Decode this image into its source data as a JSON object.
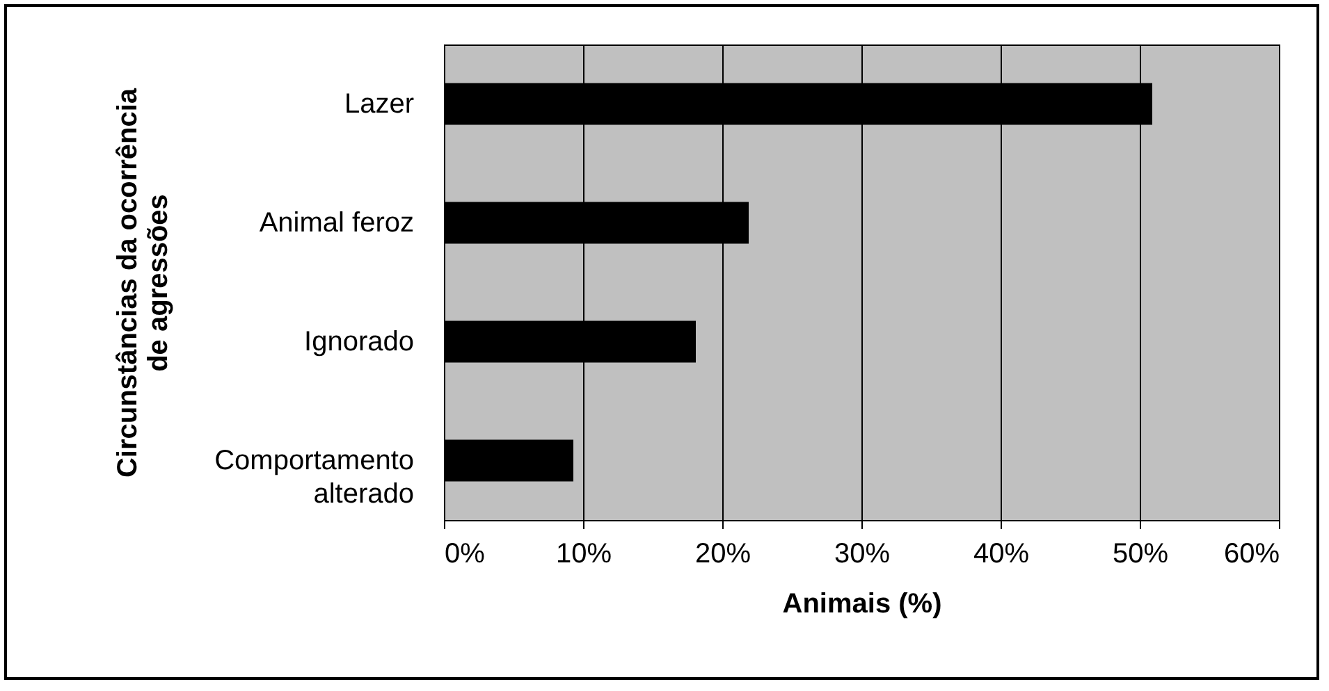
{
  "chart_data": {
    "type": "bar",
    "orientation": "horizontal",
    "xlabel": "Animais (%)",
    "ylabel": "Circunstâncias da ocorrência de agressões",
    "categories": [
      "Lazer",
      "Animal feroz",
      "Ignorado",
      "Comportamento alterado"
    ],
    "values": [
      50.9,
      21.9,
      18.1,
      9.3
    ],
    "color": "#000000",
    "xlim": [
      0,
      60
    ],
    "xticks": [
      {
        "value": 0,
        "label": "0%"
      },
      {
        "value": 10,
        "label": "10%"
      },
      {
        "value": 20,
        "label": "20%"
      },
      {
        "value": 30,
        "label": "30%"
      },
      {
        "value": 40,
        "label": "40%"
      },
      {
        "value": 50,
        "label": "50%"
      },
      {
        "value": 60,
        "label": "60%"
      }
    ],
    "grid": "x"
  }
}
